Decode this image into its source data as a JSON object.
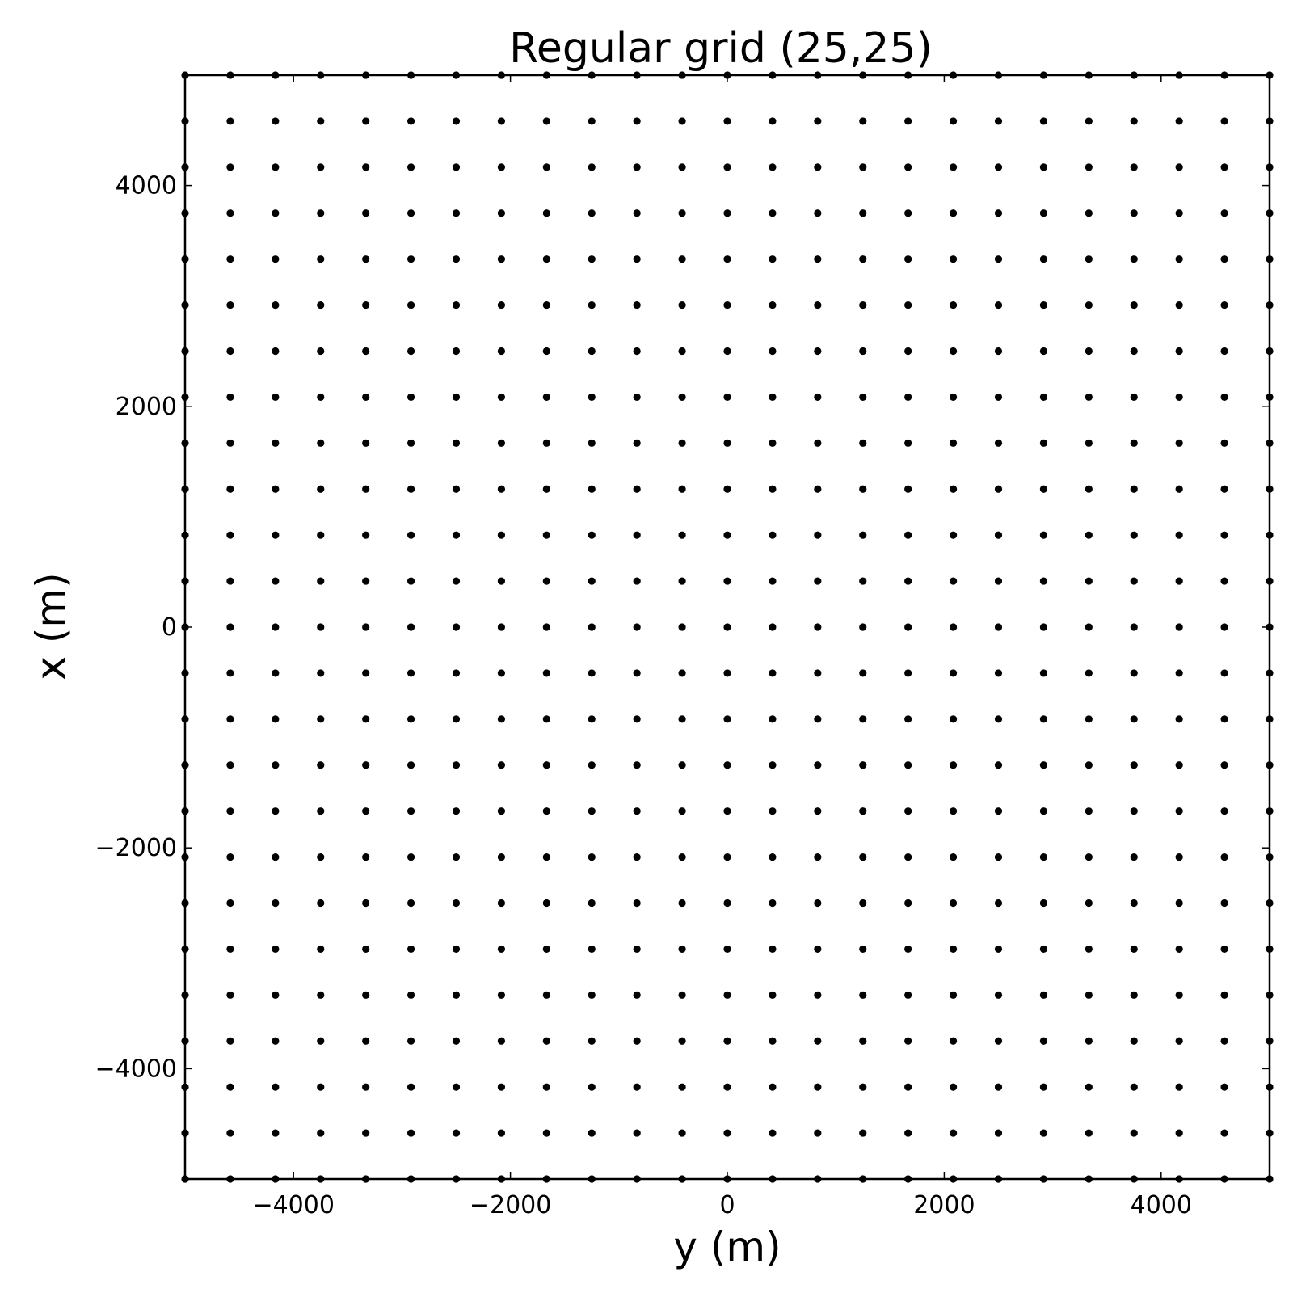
{
  "chart_data": {
    "type": "scatter",
    "title": "Regular grid (25,25)",
    "xlabel": "y (m)",
    "ylabel": "x (m)",
    "xlim": [
      -5000,
      5000
    ],
    "ylim": [
      -5000,
      5000
    ],
    "grid": false,
    "marker_color": "#000000",
    "grid_shape": [
      25,
      25
    ],
    "x_values": [
      -5000,
      -4583.33,
      -4166.67,
      -3750,
      -3333.33,
      -2916.67,
      -2500,
      -2083.33,
      -1666.67,
      -1250,
      -833.33,
      -416.67,
      0,
      416.67,
      833.33,
      1250,
      1666.67,
      2083.33,
      2500,
      2916.67,
      3333.33,
      3750,
      4166.67,
      4583.33,
      5000
    ],
    "y_values": [
      -5000,
      -4583.33,
      -4166.67,
      -3750,
      -3333.33,
      -2916.67,
      -2500,
      -2083.33,
      -1666.67,
      -1250,
      -833.33,
      -416.67,
      0,
      416.67,
      833.33,
      1250,
      1666.67,
      2083.33,
      2500,
      2916.67,
      3333.33,
      3750,
      4166.67,
      4583.33,
      5000
    ],
    "xticks": [
      -4000,
      -2000,
      0,
      2000,
      4000
    ],
    "yticks": [
      -4000,
      -2000,
      0,
      2000,
      4000
    ],
    "xtick_labels": [
      "−4000",
      "−2000",
      "0",
      "2000",
      "4000"
    ],
    "ytick_labels": [
      "−4000",
      "−2000",
      "0",
      "2000",
      "4000"
    ]
  }
}
